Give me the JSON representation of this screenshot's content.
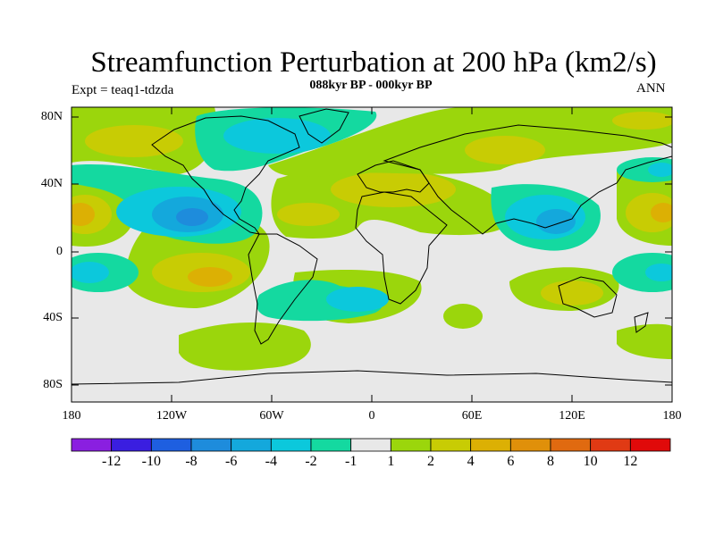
{
  "plot": {
    "title": "Streamfunction Perturbation at 200 hPa (km2/s)",
    "subtitle": "088kyr BP - 000kyr BP",
    "expt_label": "Expt = teaq1-tdzda",
    "season": "ANN"
  },
  "axes": {
    "lat_labels": [
      "80N",
      "40N",
      "0",
      "40S",
      "80S"
    ],
    "lon_labels": [
      "180",
      "120W",
      "60W",
      "0",
      "60E",
      "120E",
      "180"
    ]
  },
  "colorbar": {
    "labels": [
      "-12",
      "-10",
      "-8",
      "-6",
      "-4",
      "-2",
      "-1",
      "1",
      "2",
      "4",
      "6",
      "8",
      "10",
      "12"
    ],
    "colors": [
      "#8a1fe0",
      "#3a1ee0",
      "#1e5fe0",
      "#1e8cdc",
      "#14a8dc",
      "#0cc8dc",
      "#14d9a0",
      "#e8e8e8",
      "#9bd60c",
      "#c8cc04",
      "#dcb004",
      "#e0900a",
      "#e06a10",
      "#e03a14",
      "#e00a0a"
    ]
  }
}
